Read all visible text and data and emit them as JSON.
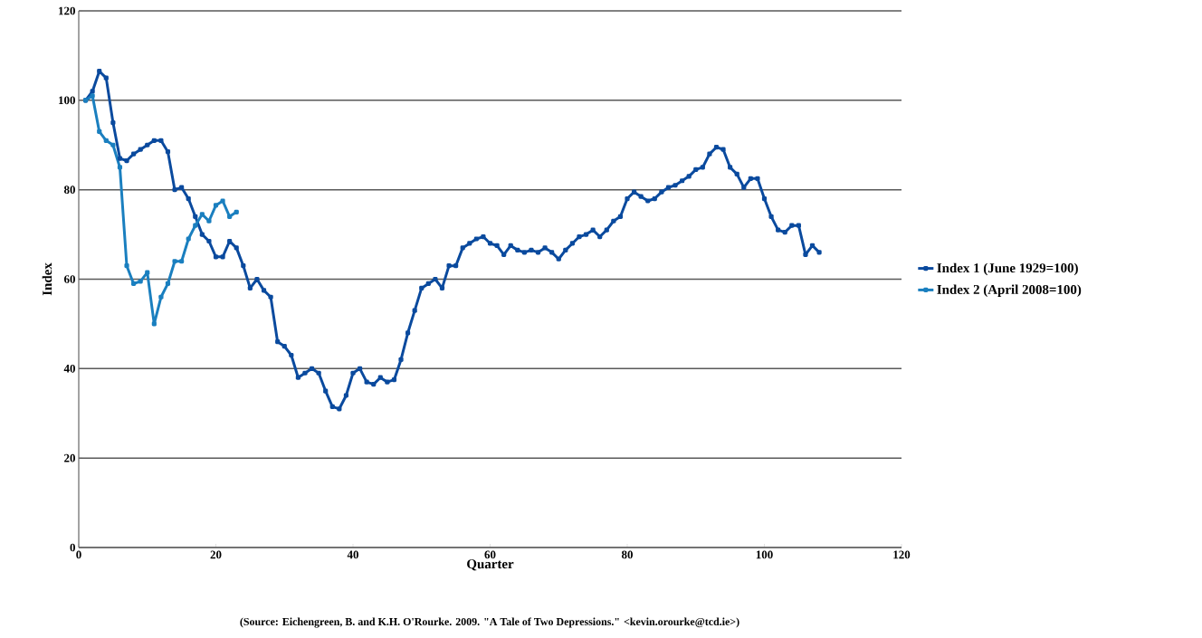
{
  "chart_data": {
    "type": "line",
    "xlabel": "Quarter",
    "ylabel": "Index",
    "annotations": [
      "(Source: Eichengreen, B. and K.H. O'Rourke. 2009. \"A Tale of Two Depressions.\" <kevin.orourke@tcd.ie>)"
    ],
    "xlim": [
      0,
      120
    ],
    "xticks": [
      0,
      20,
      40,
      60,
      80,
      100,
      120
    ],
    "ylim": [
      0,
      120
    ],
    "yticks": [
      0,
      20,
      40,
      60,
      80,
      100,
      120
    ],
    "grid": "y",
    "legend": "right",
    "marker": "square",
    "line_style": "solid",
    "series": [
      {
        "name": "Index 1 (June 1929=100)",
        "color": "#0a4a9e",
        "x": [
          1,
          2,
          3,
          4,
          5,
          6,
          7,
          8,
          9,
          10,
          11,
          12,
          13,
          14,
          15,
          16,
          17,
          18,
          19,
          20,
          21,
          22,
          23,
          24,
          25,
          26,
          27,
          28,
          29,
          30,
          31,
          32,
          33,
          34,
          35,
          36,
          37,
          38,
          39,
          40,
          41,
          42,
          43,
          44,
          45,
          46,
          47,
          48,
          49,
          50,
          51,
          52,
          53,
          54,
          55,
          56,
          57,
          58,
          59,
          60,
          61,
          62,
          63,
          64,
          65,
          66,
          67,
          68,
          69,
          70,
          71,
          72,
          73,
          74,
          75,
          76,
          77,
          78,
          79,
          80,
          81,
          82,
          83,
          84,
          85,
          86,
          87,
          88,
          89,
          90,
          91,
          92,
          93,
          94,
          95,
          96,
          97,
          98,
          99,
          100,
          101,
          102,
          103,
          104,
          105,
          106,
          107,
          108
        ],
        "values": [
          100,
          102,
          106.5,
          105,
          95,
          87,
          86.5,
          88,
          89,
          90,
          91,
          91,
          88.5,
          80,
          80.5,
          78,
          74,
          70,
          68.5,
          65,
          65,
          68.5,
          67,
          63,
          58,
          60,
          57.5,
          56,
          46,
          45,
          43,
          38,
          39,
          40,
          39,
          35,
          31.5,
          31,
          34,
          39,
          40,
          37,
          36.5,
          38,
          37,
          37.5,
          42,
          48,
          53,
          58,
          59,
          60,
          58,
          63,
          63,
          67,
          68,
          69,
          69.5,
          68,
          67.5,
          65.5,
          67.5,
          66.5,
          66,
          66.5,
          66,
          67,
          66,
          64.5,
          66.5,
          68,
          69.5,
          70,
          71,
          69.5,
          71,
          73,
          74,
          78,
          79.5,
          78.5,
          77.5,
          78,
          79.5,
          80.5,
          81,
          82,
          83,
          84.5,
          85,
          88,
          89.5,
          89,
          85,
          83.5,
          80.5,
          82.5,
          82.5,
          78,
          74,
          71,
          70.5,
          72,
          72,
          65.5,
          67.5,
          66
        ]
      },
      {
        "name": "Index 2 (April 2008=100)",
        "color": "#1a7fbf",
        "x": [
          1,
          2,
          3,
          4,
          5,
          6,
          7,
          8,
          9,
          10,
          11,
          12,
          13,
          14,
          15,
          16,
          17,
          18,
          19,
          20,
          21,
          22,
          23
        ],
        "values": [
          100,
          101,
          93,
          91,
          90,
          85,
          63,
          59,
          59.5,
          61.5,
          50,
          56,
          59,
          64,
          64,
          69,
          72,
          74.5,
          73,
          76.5,
          77.5,
          74,
          75
        ]
      }
    ]
  }
}
